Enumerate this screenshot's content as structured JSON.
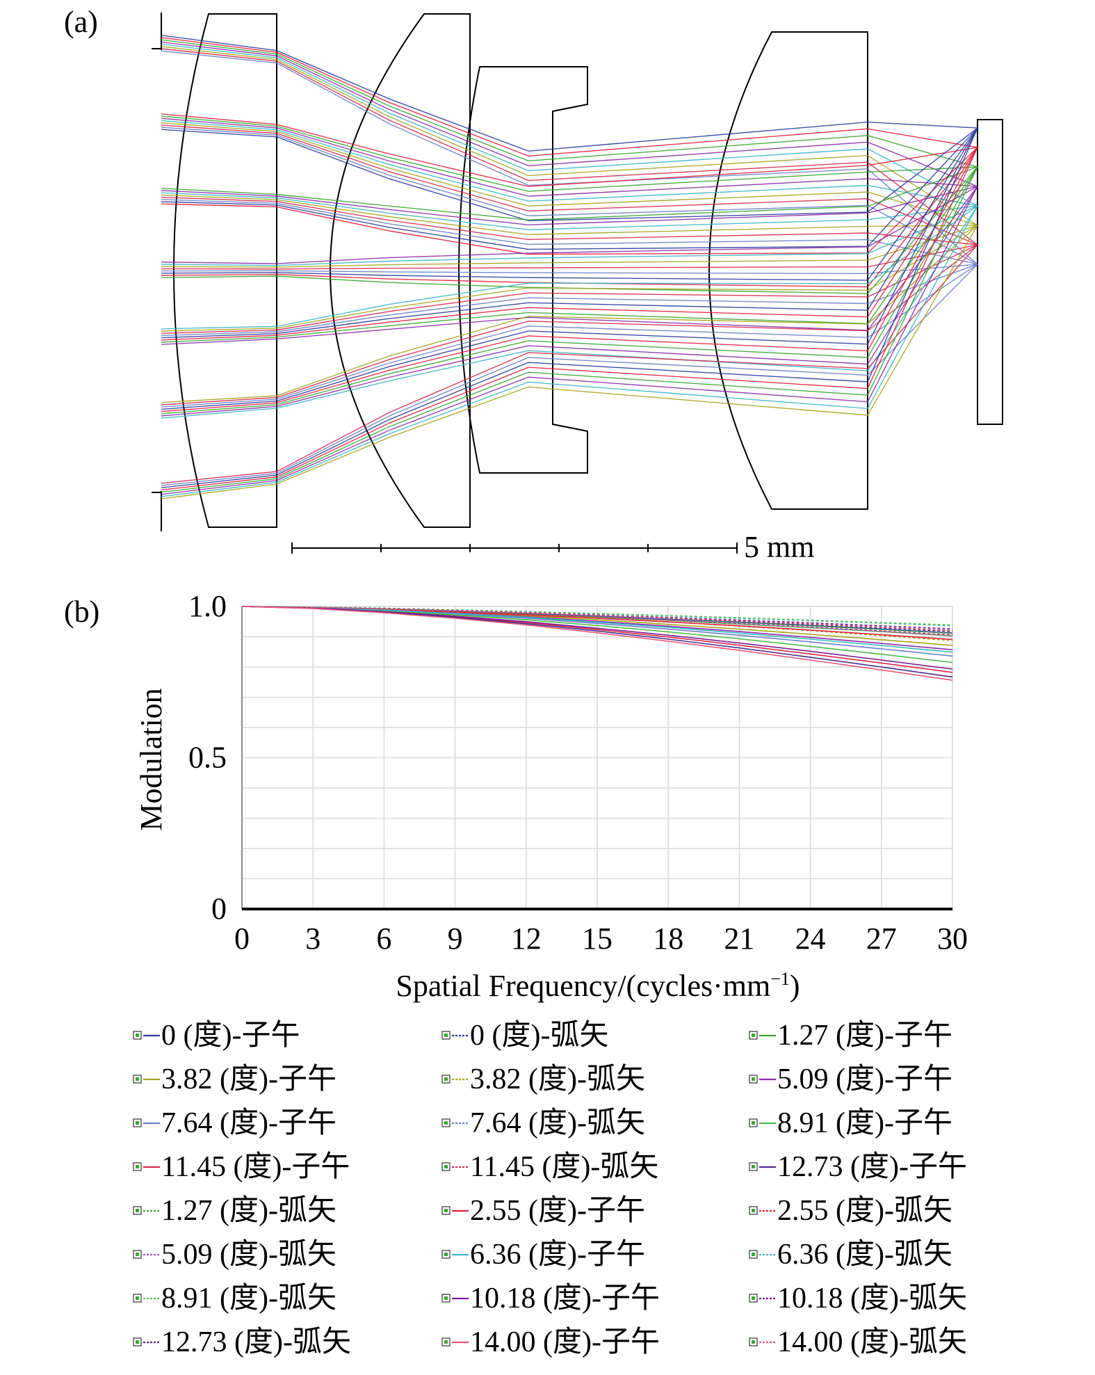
{
  "panel_a": {
    "label": "(a)",
    "scale_bar_label": "5 mm"
  },
  "panel_b": {
    "label": "(b)"
  },
  "chart_data": {
    "type": "line",
    "xlabel": "Spatial Frequency/(cycles·mm",
    "xlabel_sup": "−1",
    "xlabel_close": ")",
    "ylabel": "Modulation",
    "xlim": [
      0,
      30
    ],
    "ylim": [
      0,
      1.0
    ],
    "x_ticks": [
      "0",
      "3",
      "6",
      "9",
      "12",
      "15",
      "18",
      "21",
      "24",
      "27",
      "30"
    ],
    "y_ticks": [
      {
        "value": 0,
        "label": "0"
      },
      {
        "value": 0.5,
        "label": "0.5"
      },
      {
        "value": 1.0,
        "label": "1.0"
      }
    ],
    "grid": true,
    "legend_position": "bottom",
    "x": [
      0,
      3,
      6,
      9,
      12,
      15,
      18,
      21,
      24,
      27,
      30
    ],
    "series": [
      {
        "name": "0 (度)-子午",
        "color": "#2b3d9e",
        "dash": false,
        "values": [
          1.0,
          0.997,
          0.992,
          0.985,
          0.977,
          0.968,
          0.958,
          0.948,
          0.937,
          0.925,
          0.912
        ]
      },
      {
        "name": "0 (度)-弧矢",
        "color": "#2b3d9e",
        "dash": true,
        "values": [
          1.0,
          0.997,
          0.992,
          0.985,
          0.977,
          0.968,
          0.958,
          0.948,
          0.937,
          0.925,
          0.912
        ]
      },
      {
        "name": "1.27 (度)-子午",
        "color": "#3aa632",
        "dash": false,
        "values": [
          1.0,
          0.997,
          0.991,
          0.984,
          0.975,
          0.965,
          0.954,
          0.942,
          0.93,
          0.917,
          0.903
        ]
      },
      {
        "name": "3.82 (度)-子午",
        "color": "#a5a51e",
        "dash": false,
        "values": [
          1.0,
          0.996,
          0.989,
          0.98,
          0.969,
          0.956,
          0.941,
          0.925,
          0.908,
          0.89,
          0.871
        ]
      },
      {
        "name": "3.82 (度)-弧矢",
        "color": "#a5a51e",
        "dash": true,
        "values": [
          1.0,
          0.997,
          0.991,
          0.983,
          0.973,
          0.962,
          0.949,
          0.935,
          0.92,
          0.904,
          0.887
        ]
      },
      {
        "name": "5.09 (度)-子午",
        "color": "#8a2ca8",
        "dash": false,
        "values": [
          1.0,
          0.996,
          0.988,
          0.978,
          0.966,
          0.951,
          0.935,
          0.917,
          0.898,
          0.878,
          0.857
        ]
      },
      {
        "name": "7.64 (度)-子午",
        "color": "#6b7fc7",
        "dash": false,
        "values": [
          1.0,
          0.995,
          0.987,
          0.975,
          0.961,
          0.944,
          0.925,
          0.905,
          0.883,
          0.86,
          0.836
        ]
      },
      {
        "name": "7.64 (度)-弧矢",
        "color": "#6b7fc7",
        "dash": true,
        "values": [
          1.0,
          0.997,
          0.993,
          0.987,
          0.98,
          0.972,
          0.963,
          0.953,
          0.943,
          0.932,
          0.921
        ]
      },
      {
        "name": "8.91 (度)-子午",
        "color": "#4fb84a",
        "dash": false,
        "values": [
          1.0,
          0.995,
          0.985,
          0.972,
          0.956,
          0.937,
          0.916,
          0.893,
          0.868,
          0.842,
          0.815
        ]
      },
      {
        "name": "11.45 (度)-子午",
        "color": "#d42a4e",
        "dash": false,
        "values": [
          1.0,
          0.994,
          0.982,
          0.966,
          0.947,
          0.924,
          0.899,
          0.872,
          0.843,
          0.813,
          0.782
        ]
      },
      {
        "name": "11.45 (度)-弧矢",
        "color": "#d42a4e",
        "dash": true,
        "values": [
          1.0,
          0.997,
          0.993,
          0.987,
          0.98,
          0.972,
          0.963,
          0.953,
          0.942,
          0.93,
          0.918
        ]
      },
      {
        "name": "12.73 (度)-子午",
        "color": "#4a2c8f",
        "dash": false,
        "values": [
          1.0,
          0.994,
          0.981,
          0.964,
          0.943,
          0.919,
          0.892,
          0.863,
          0.832,
          0.8,
          0.767
        ]
      },
      {
        "name": "1.27 (度)-弧矢",
        "color": "#3aa632",
        "dash": true,
        "values": [
          1.0,
          0.997,
          0.992,
          0.985,
          0.977,
          0.968,
          0.958,
          0.947,
          0.936,
          0.924,
          0.911
        ]
      },
      {
        "name": "2.55 (度)-子午",
        "color": "#e0213f",
        "dash": false,
        "values": [
          1.0,
          0.996,
          0.99,
          0.982,
          0.972,
          0.961,
          0.949,
          0.936,
          0.922,
          0.907,
          0.891
        ]
      },
      {
        "name": "2.55 (度)-弧矢",
        "color": "#e0213f",
        "dash": true,
        "values": [
          1.0,
          0.997,
          0.992,
          0.985,
          0.976,
          0.966,
          0.955,
          0.944,
          0.932,
          0.919,
          0.906
        ]
      },
      {
        "name": "5.09 (度)-弧矢",
        "color": "#b04fd0",
        "dash": true,
        "values": [
          1.0,
          0.997,
          0.992,
          0.985,
          0.977,
          0.967,
          0.956,
          0.944,
          0.931,
          0.918,
          0.904
        ]
      },
      {
        "name": "6.36 (度)-子午",
        "color": "#3bb7c4",
        "dash": false,
        "values": [
          1.0,
          0.996,
          0.988,
          0.977,
          0.964,
          0.948,
          0.931,
          0.912,
          0.892,
          0.871,
          0.849
        ]
      },
      {
        "name": "6.36 (度)-弧矢",
        "color": "#3bb7c4",
        "dash": true,
        "values": [
          1.0,
          0.998,
          0.994,
          0.989,
          0.983,
          0.976,
          0.969,
          0.961,
          0.953,
          0.945,
          0.936
        ]
      },
      {
        "name": "8.91 (度)-弧矢",
        "color": "#5cc85a",
        "dash": true,
        "values": [
          1.0,
          0.998,
          0.994,
          0.989,
          0.983,
          0.977,
          0.97,
          0.963,
          0.955,
          0.947,
          0.939
        ]
      },
      {
        "name": "10.18 (度)-子午",
        "color": "#7a1f8f",
        "dash": false,
        "values": [
          1.0,
          0.995,
          0.983,
          0.968,
          0.95,
          0.928,
          0.905,
          0.879,
          0.852,
          0.823,
          0.793
        ]
      },
      {
        "name": "10.18 (度)-弧矢",
        "color": "#7a1f8f",
        "dash": true,
        "values": [
          1.0,
          0.997,
          0.993,
          0.987,
          0.98,
          0.972,
          0.964,
          0.955,
          0.946,
          0.936,
          0.926
        ]
      },
      {
        "name": "12.73 (度)-弧矢",
        "color": "#4a2c8f",
        "dash": true,
        "values": [
          1.0,
          0.997,
          0.992,
          0.986,
          0.978,
          0.97,
          0.961,
          0.951,
          0.94,
          0.929,
          0.917
        ]
      },
      {
        "name": "14.00 (度)-子午",
        "color": "#e8557a",
        "dash": false,
        "values": [
          1.0,
          0.993,
          0.979,
          0.961,
          0.939,
          0.913,
          0.885,
          0.855,
          0.823,
          0.79,
          0.756
        ]
      },
      {
        "name": "14.00 (度)-弧矢",
        "color": "#e8557a",
        "dash": true,
        "values": [
          1.0,
          0.997,
          0.992,
          0.986,
          0.979,
          0.971,
          0.962,
          0.952,
          0.942,
          0.931,
          0.92
        ]
      }
    ]
  }
}
